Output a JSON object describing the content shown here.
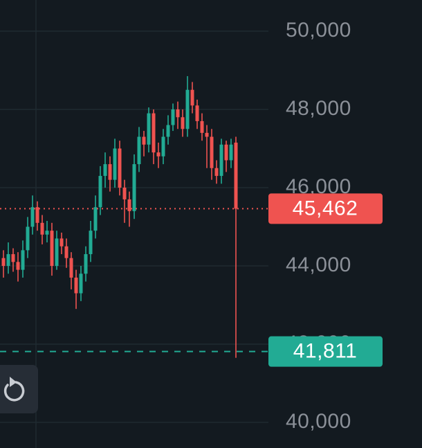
{
  "chart_data": {
    "type": "candlestick",
    "ylim": [
      39345,
      50796
    ],
    "yticks": [
      {
        "value": 40000,
        "label": "40,000"
      },
      {
        "value": 42000,
        "label": "42,000"
      },
      {
        "value": 44000,
        "label": "44,000"
      },
      {
        "value": 46000,
        "label": "46,000"
      },
      {
        "value": 48000,
        "label": "48,000"
      },
      {
        "value": 50000,
        "label": "50,000"
      }
    ],
    "grid": true,
    "up_color": "#22ab94",
    "down_color": "#ef5350",
    "open": [
      44200,
      44000,
      44300,
      44100,
      43900,
      44400,
      45000,
      45500,
      45100,
      44800,
      44900,
      44000,
      44700,
      44500,
      44200,
      43700,
      43300,
      43800,
      44300,
      44900,
      45500,
      46300,
      46600,
      46200,
      47000,
      46000,
      45700,
      45400,
      46600,
      47300,
      47100,
      47900,
      46900,
      46800,
      47300,
      47600,
      48000,
      47800,
      47500,
      48500,
      48100,
      47700,
      47400,
      47300,
      46500,
      46300,
      47100,
      46700,
      47150
    ],
    "high": [
      44400,
      44600,
      44450,
      44350,
      44650,
      45250,
      45800,
      45650,
      45300,
      45150,
      45100,
      44900,
      44850,
      44700,
      44350,
      43900,
      44000,
      44500,
      45150,
      45800,
      46550,
      46900,
      46800,
      47250,
      47200,
      46200,
      45900,
      46850,
      47550,
      47450,
      48050,
      48000,
      47150,
      47500,
      47850,
      48150,
      48200,
      48000,
      48850,
      48700,
      48250,
      47900,
      47600,
      47500,
      46700,
      47250,
      47200,
      47250,
      47300
    ],
    "low": [
      43700,
      43800,
      43850,
      43600,
      43700,
      44200,
      44800,
      44900,
      44550,
      44600,
      43750,
      43900,
      44300,
      43950,
      43400,
      42900,
      43100,
      43600,
      44100,
      44700,
      45300,
      46000,
      45900,
      46000,
      45800,
      45100,
      45000,
      45200,
      46400,
      46800,
      46900,
      46600,
      46500,
      46600,
      47100,
      47450,
      47500,
      47300,
      47300,
      47900,
      47500,
      47200,
      46500,
      46200,
      46100,
      46100,
      46400,
      46500,
      41650
    ],
    "close": [
      44000,
      44300,
      44100,
      43900,
      44400,
      45000,
      45500,
      45100,
      44800,
      44900,
      44000,
      44700,
      44500,
      44200,
      43700,
      43300,
      43800,
      44300,
      44900,
      45500,
      46300,
      46600,
      46200,
      47000,
      46000,
      45700,
      45400,
      46600,
      47300,
      47100,
      47900,
      46900,
      46800,
      47300,
      47600,
      48000,
      47800,
      47500,
      48500,
      48100,
      47700,
      47400,
      47300,
      46500,
      46300,
      47100,
      46700,
      47100,
      45462
    ],
    "price_lines": [
      {
        "value": 45462,
        "label": "45,462",
        "color": "#ef5350",
        "style": "dotted"
      },
      {
        "value": 41811,
        "label": "41,811",
        "color": "#22ab94",
        "style": "dashed"
      }
    ]
  }
}
